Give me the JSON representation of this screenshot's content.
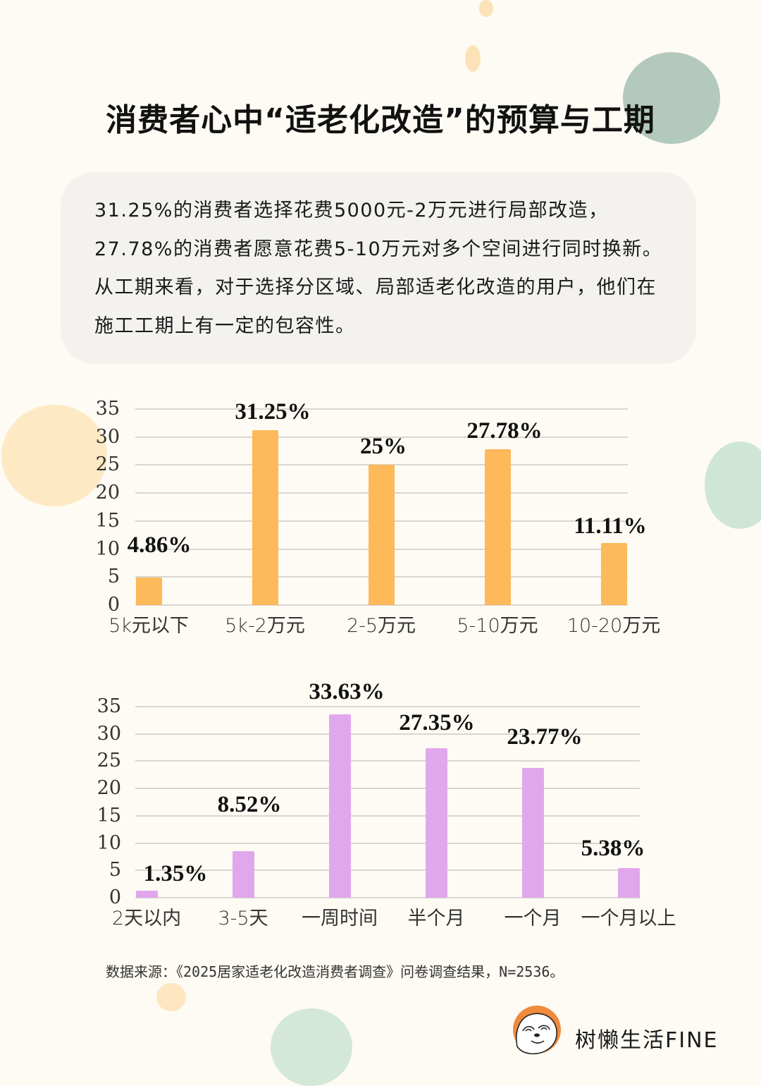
{
  "title": "消费者心中“适老化改造”的预算与工期",
  "summary": "31.25%的消费者选择花费5000元-2万元进行局部改造，27.78%的消费者愿意花费5-10万元对多个空间进行同时换新。从工期来看，对于选择分区域、局部适老化改造的用户，他们在施工工期上有一定的包容性。",
  "colors": {
    "background": "#fdfbf3",
    "summary_bg": "#f3f2ef",
    "budget_bar": "#fdb95a",
    "duration_bar": "#e1a7ec",
    "grid": "#d8d6d0",
    "logo_orange": "#f08a3c"
  },
  "chart_data": [
    {
      "type": "bar",
      "title": "",
      "xlabel": "",
      "ylabel": "",
      "ylim": [
        0,
        35
      ],
      "yticks": [
        0,
        5,
        10,
        15,
        20,
        25,
        30,
        35
      ],
      "grid": true,
      "categories": [
        "5k元以下",
        "5k-2万元",
        "2-5万元",
        "5-10万元",
        "10-20万元"
      ],
      "values": [
        4.86,
        31.25,
        25,
        27.78,
        11.11
      ],
      "labels": [
        "4.86%",
        "31.25%",
        "25%",
        "27.78%",
        "11.11%"
      ],
      "color": "#fdb95a"
    },
    {
      "type": "bar",
      "title": "",
      "xlabel": "",
      "ylabel": "",
      "ylim": [
        0,
        35
      ],
      "yticks": [
        0,
        5,
        10,
        15,
        20,
        25,
        30,
        35
      ],
      "grid": true,
      "categories": [
        "2天以内",
        "3-5天",
        "一周时间",
        "半个月",
        "一个月",
        "一个月以上"
      ],
      "values": [
        1.35,
        8.52,
        33.63,
        27.35,
        23.77,
        5.38
      ],
      "labels": [
        "1.35%",
        "8.52%",
        "33.63%",
        "27.35%",
        "23.77%",
        "5.38%"
      ],
      "color": "#e1a7ec"
    }
  ],
  "source": "数据来源：《2025居家适老化改造消费者调查》问卷调查结果，N=2536。",
  "brand": {
    "name": "树懒生活FINE",
    "logo_icon": "sloth-logo-icon"
  }
}
